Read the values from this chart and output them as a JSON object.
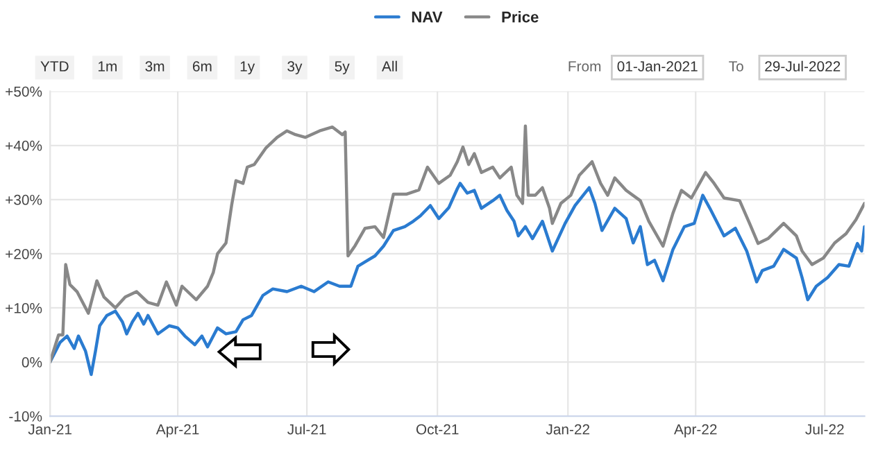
{
  "chart_data": {
    "type": "line",
    "legend": "top",
    "grid": true,
    "line_style": "solid",
    "marker": "none",
    "xlim": [
      "2021-01-01",
      "2022-07-29"
    ],
    "xticks": [
      {
        "value": "2021-01-01",
        "label": "Jan-21"
      },
      {
        "value": "2021-04-01",
        "label": "Apr-21"
      },
      {
        "value": "2021-07-01",
        "label": "Jul-21"
      },
      {
        "value": "2021-10-01",
        "label": "Oct-21"
      },
      {
        "value": "2022-01-01",
        "label": "Jan-22"
      },
      {
        "value": "2022-04-01",
        "label": "Apr-22"
      },
      {
        "value": "2022-07-01",
        "label": "Jul-22"
      }
    ],
    "ylim": [
      -10,
      50
    ],
    "yticks": [
      {
        "value": -10,
        "label": "-10%"
      },
      {
        "value": 0,
        "label": "0%"
      },
      {
        "value": 10,
        "label": "+10%"
      },
      {
        "value": 20,
        "label": "+20%"
      },
      {
        "value": 30,
        "label": "+30%"
      },
      {
        "value": 40,
        "label": "+40%"
      },
      {
        "value": 50,
        "label": "+50%"
      }
    ],
    "annotations": [
      "YTD",
      "1m",
      "3m",
      "6m",
      "1y",
      "3y",
      "5y",
      "All",
      "From",
      "01-Jan-2021",
      "To",
      "29-Jul-2022"
    ],
    "series": [
      {
        "name": "NAV",
        "color": "#2a7bd0",
        "x": [
          "2021-01-01",
          "2021-01-08",
          "2021-01-13",
          "2021-01-18",
          "2021-01-21",
          "2021-01-26",
          "2021-01-30",
          "2021-02-02",
          "2021-02-05",
          "2021-02-10",
          "2021-02-16",
          "2021-02-21",
          "2021-02-24",
          "2021-02-28",
          "2021-03-04",
          "2021-03-08",
          "2021-03-11",
          "2021-03-18",
          "2021-03-26",
          "2021-04-01",
          "2021-04-06",
          "2021-04-13",
          "2021-04-18",
          "2021-04-22",
          "2021-04-29",
          "2021-05-05",
          "2021-05-12",
          "2021-05-17",
          "2021-05-23",
          "2021-05-31",
          "2021-06-07",
          "2021-06-17",
          "2021-06-27",
          "2021-07-06",
          "2021-07-16",
          "2021-07-24",
          "2021-08-01",
          "2021-08-06",
          "2021-08-11",
          "2021-08-18",
          "2021-08-24",
          "2021-08-31",
          "2021-09-08",
          "2021-09-14",
          "2021-09-19",
          "2021-09-26",
          "2021-10-02",
          "2021-10-09",
          "2021-10-15",
          "2021-10-17",
          "2021-10-22",
          "2021-10-27",
          "2021-11-01",
          "2021-11-09",
          "2021-11-14",
          "2021-11-19",
          "2021-11-24",
          "2021-11-27",
          "2021-12-02",
          "2021-12-07",
          "2021-12-14",
          "2021-12-21",
          "2021-12-30",
          "2022-01-06",
          "2022-01-16",
          "2022-01-20",
          "2022-01-25",
          "2022-02-03",
          "2022-02-11",
          "2022-02-16",
          "2022-02-21",
          "2022-02-26",
          "2022-03-03",
          "2022-03-09",
          "2022-03-16",
          "2022-03-24",
          "2022-03-31",
          "2022-04-06",
          "2022-04-11",
          "2022-04-21",
          "2022-04-29",
          "2022-05-07",
          "2022-05-14",
          "2022-05-18",
          "2022-05-26",
          "2022-06-02",
          "2022-06-11",
          "2022-06-15",
          "2022-06-19",
          "2022-06-25",
          "2022-07-03",
          "2022-07-11",
          "2022-07-18",
          "2022-07-24",
          "2022-07-27",
          "2022-07-29"
        ],
        "values": [
          0,
          3.6,
          4.8,
          2.5,
          4.8,
          2,
          -2.3,
          2,
          6.7,
          8.6,
          9.4,
          7.4,
          5.2,
          7.4,
          9,
          7,
          8.6,
          5.2,
          6.7,
          6.3,
          4.8,
          3.2,
          4.8,
          2.8,
          6.3,
          5.2,
          5.6,
          7.8,
          8.6,
          12.3,
          13.5,
          13,
          14,
          13,
          14.8,
          14,
          14,
          17.7,
          18.5,
          19.6,
          21.4,
          24.3,
          25,
          26,
          27,
          28.9,
          26.5,
          28.5,
          32,
          33,
          31.2,
          31.7,
          28.4,
          29.8,
          30.8,
          28,
          26,
          23.3,
          25,
          22.8,
          26,
          20.5,
          25.6,
          28.9,
          32.2,
          29.3,
          24.3,
          28.4,
          26.5,
          22,
          25,
          18,
          18.8,
          15,
          20.8,
          25,
          25.6,
          30.8,
          28.4,
          23.3,
          24.7,
          20.5,
          14.8,
          16.9,
          17.7,
          20.8,
          19.2,
          15.6,
          11.5,
          14,
          15.6,
          18,
          17.7,
          21.9,
          20.5,
          25
        ]
      },
      {
        "name": "Price",
        "color": "#888888",
        "x": [
          "2021-01-01",
          "2021-01-07",
          "2021-01-10",
          "2021-01-12",
          "2021-01-15",
          "2021-01-20",
          "2021-01-28",
          "2021-02-03",
          "2021-02-08",
          "2021-02-16",
          "2021-02-23",
          "2021-03-03",
          "2021-03-11",
          "2021-03-18",
          "2021-03-24",
          "2021-03-31",
          "2021-04-04",
          "2021-04-14",
          "2021-04-22",
          "2021-04-26",
          "2021-04-29",
          "2021-05-05",
          "2021-05-09",
          "2021-05-12",
          "2021-05-17",
          "2021-05-20",
          "2021-05-25",
          "2021-06-02",
          "2021-06-10",
          "2021-06-17",
          "2021-06-23",
          "2021-06-30",
          "2021-07-10",
          "2021-07-19",
          "2021-07-26",
          "2021-07-28",
          "2021-07-30",
          "2021-08-04",
          "2021-08-11",
          "2021-08-18",
          "2021-08-24",
          "2021-08-31",
          "2021-09-09",
          "2021-09-18",
          "2021-09-24",
          "2021-10-02",
          "2021-10-10",
          "2021-10-15",
          "2021-10-19",
          "2021-10-23",
          "2021-10-27",
          "2021-11-01",
          "2021-11-09",
          "2021-11-14",
          "2021-11-22",
          "2021-11-26",
          "2021-11-30",
          "2021-12-02",
          "2021-12-04",
          "2021-12-09",
          "2021-12-14",
          "2021-12-19",
          "2021-12-21",
          "2021-12-27",
          "2022-01-03",
          "2022-01-09",
          "2022-01-18",
          "2022-01-24",
          "2022-01-29",
          "2022-02-03",
          "2022-02-11",
          "2022-02-21",
          "2022-02-27",
          "2022-03-09",
          "2022-03-16",
          "2022-03-22",
          "2022-03-29",
          "2022-04-08",
          "2022-04-14",
          "2022-04-21",
          "2022-05-02",
          "2022-05-09",
          "2022-05-15",
          "2022-05-22",
          "2022-06-02",
          "2022-06-11",
          "2022-06-15",
          "2022-06-22",
          "2022-06-30",
          "2022-07-08",
          "2022-07-16",
          "2022-07-23",
          "2022-07-29"
        ],
        "values": [
          0,
          5,
          5,
          18,
          14.3,
          13,
          9,
          15,
          12,
          10,
          12,
          13,
          11,
          10.5,
          14.8,
          10.5,
          14,
          11.5,
          14,
          16.5,
          20,
          22,
          29,
          33.5,
          33,
          36,
          36.5,
          39.5,
          41.5,
          42.7,
          42,
          41.5,
          42.7,
          43.4,
          42,
          42.5,
          19.6,
          21.5,
          24.7,
          25,
          23,
          31,
          31,
          31.8,
          36,
          33,
          34.5,
          37,
          39.7,
          36.5,
          38.5,
          35,
          36,
          34,
          36,
          30.8,
          29.3,
          43.6,
          30.8,
          30.8,
          32.2,
          28.4,
          25.6,
          29.3,
          30.8,
          34.5,
          37,
          33,
          30.8,
          34,
          31.7,
          29.8,
          26,
          21.4,
          27.5,
          31.7,
          30.3,
          35,
          33,
          30.3,
          29.8,
          25.6,
          21.9,
          22.8,
          25.6,
          23.3,
          20.5,
          18,
          19.2,
          22,
          23.7,
          26.3,
          29.3
        ]
      }
    ]
  }
}
